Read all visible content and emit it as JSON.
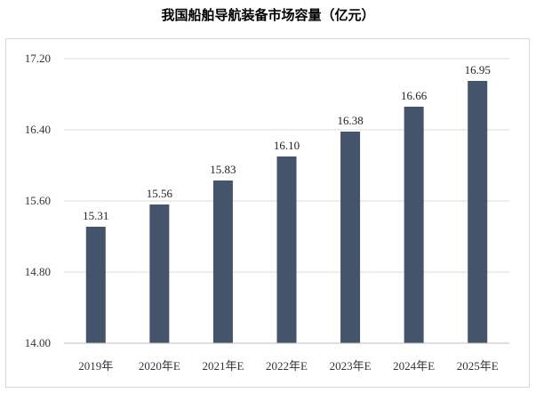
{
  "chart_data": {
    "type": "bar",
    "title": "我国船舶导航装备市场容量（亿元）",
    "categories": [
      "2019年",
      "2020年E",
      "2021年E",
      "2022年E",
      "2023年E",
      "2024年E",
      "2025年E"
    ],
    "values": [
      15.31,
      15.56,
      15.83,
      16.1,
      16.38,
      16.66,
      16.95
    ],
    "data_labels": [
      "15.31",
      "15.56",
      "15.83",
      "16.10",
      "16.38",
      "16.66",
      "16.95"
    ],
    "yticks": [
      "14.00",
      "14.80",
      "15.60",
      "16.40",
      "17.20"
    ],
    "ylim": [
      14.0,
      17.2
    ],
    "bar_color": "#44546a",
    "grid": true,
    "legend": "none"
  }
}
